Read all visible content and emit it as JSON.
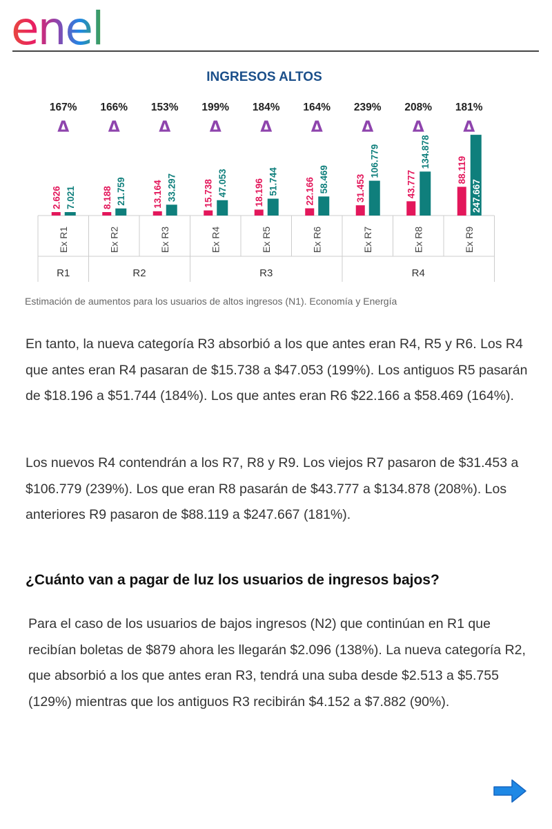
{
  "logo": {
    "text": "enel"
  },
  "chart_data": {
    "type": "bar",
    "title": "INGRESOS ALTOS",
    "categories": [
      "Ex R1",
      "Ex R2",
      "Ex R3",
      "Ex R4",
      "Ex R5",
      "Ex R6",
      "Ex R7",
      "Ex R8",
      "Ex R9"
    ],
    "value_labels_before": [
      "2.626",
      "8.188",
      "13.164",
      "15.738",
      "18.196",
      "22.166",
      "31.453",
      "43.777",
      "88.119"
    ],
    "value_labels_after": [
      "7.021",
      "21.759",
      "33.297",
      "47.053",
      "51.744",
      "58.469",
      "106.779",
      "134.878",
      "247.667"
    ],
    "series": [
      {
        "values": [
          2626,
          8188,
          13164,
          15738,
          18196,
          22166,
          31453,
          43777,
          88119
        ],
        "color": "#e3175b"
      },
      {
        "values": [
          7021,
          21759,
          33297,
          47053,
          51744,
          58469,
          106779,
          134878,
          247667
        ],
        "color": "#0f7f7c"
      }
    ],
    "percentages": [
      "167%",
      "166%",
      "153%",
      "199%",
      "184%",
      "164%",
      "239%",
      "208%",
      "181%"
    ],
    "delta_symbol": "Δ",
    "groups": [
      {
        "label": "R1",
        "span": [
          0,
          0
        ]
      },
      {
        "label": "R2",
        "span": [
          1,
          2
        ]
      },
      {
        "label": "R3",
        "span": [
          3,
          5
        ]
      },
      {
        "label": "R4",
        "span": [
          6,
          8
        ]
      }
    ],
    "colors": {
      "title": "#1b4f8a",
      "delta": "#8e44ad",
      "before": "#e3175b",
      "after": "#0f7f7c",
      "grid": "#cccccc"
    },
    "ylim": [
      0,
      250000
    ]
  },
  "caption": "Estimación de aumentos para los usuarios de altos ingresos (N1). Economía y Energía",
  "article": {
    "p1": "En tanto, la nueva categoría R3 absorbió a los que antes eran R4, R5 y R6. Los R4 que antes eran R4 pasaran de $15.738 a $47.053 (199%). Los antiguos R5 pasarán de $18.196 a $51.744 (184%). Los que antes eran R6 $22.166 a $58.469 (164%).",
    "p2": "Los nuevos R4 contendrán a los R7, R8 y R9. Los viejos R7 pasaron de $31.453 a $106.779 (239%). Los que eran R8 pasarán de $43.777 a $134.878 (208%). Los anteriores R9 pasaron de $88.119 a $247.667 (181%).",
    "heading": "¿Cuánto van a pagar de luz los usuarios de ingresos bajos?",
    "p3": "Para el caso de los usuarios de bajos ingresos (N2) que continúan en R1 que recibían boletas de $879 ahora les llegarán $2.096 (138%). La nueva categoría R2, que absorbió a los que antes eran R3, tendrá una suba desde $2.513 a $5.755 (129%) mientras que los antiguos R3 recibirán $4.152 a $7.882 (90%)."
  },
  "nav": {
    "next_icon": "arrow-right-icon",
    "color": "#1e88e5"
  }
}
